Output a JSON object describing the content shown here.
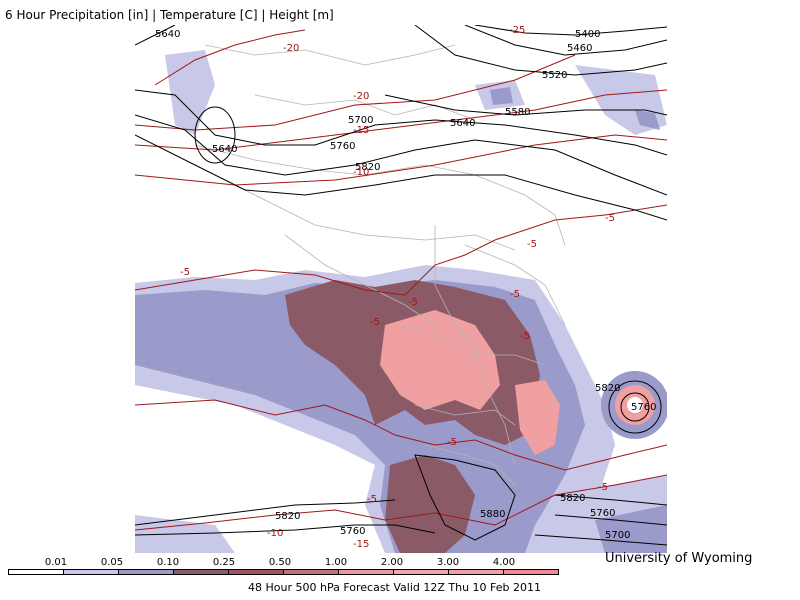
{
  "header": {
    "title": "6 Hour Precipitation [in] | Temperature [C] | Height [m]"
  },
  "legend": {
    "ticks": [
      "0.01",
      "0.05",
      "0.10",
      "0.25",
      "0.50",
      "1.00",
      "2.00",
      "3.00",
      "4.00"
    ],
    "colors": [
      "#ffffff",
      "#c8c8e8",
      "#9a9acb",
      "#8a5a66",
      "#a05464",
      "#c07080",
      "#e89aa0",
      "#f0a8a8",
      "#f0a0a0",
      "#f08a90"
    ]
  },
  "footer": {
    "valid_text": "48 Hour 500 hPa Forecast Valid 12Z Thu 10 Feb 2011",
    "credit": "University of Wyoming"
  },
  "map": {
    "height_labels": [
      "5640",
      "5640",
      "5700",
      "5760",
      "5820",
      "5400",
      "5460",
      "5520",
      "5580",
      "5640",
      "5820",
      "5760",
      "5880",
      "5820",
      "5760",
      "5700",
      "5820",
      "5760"
    ],
    "temp_labels": [
      "-20",
      "-20",
      "-15",
      "-10",
      "-25",
      "-5",
      "-5",
      "-5",
      "-5",
      "-5",
      "-5",
      "-5",
      "-5",
      "-5",
      "-10",
      "-15",
      "-5"
    ],
    "colors": {
      "height": "#000000",
      "temperature": "#a01818",
      "borders": "#b4b4b4"
    }
  }
}
